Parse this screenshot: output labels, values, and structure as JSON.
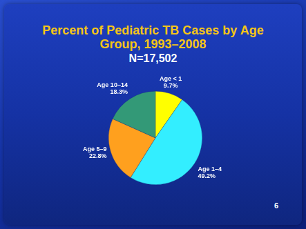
{
  "chart_data": {
    "type": "pie",
    "title": "Percent of Pediatric TB Cases by Age Group, 1993–2008",
    "subtitle": "N=17,502",
    "categories": [
      "Age < 1",
      "Age 1–4",
      "Age 5–9",
      "Age 10–14"
    ],
    "values": [
      9.7,
      49.2,
      22.8,
      18.3
    ],
    "value_labels": [
      "9.7%",
      "49.2%",
      "22.8%",
      "18.3%"
    ],
    "colors": [
      "#ffff00",
      "#33eeff",
      "#ffa01e",
      "#339977"
    ],
    "data_labels": true,
    "legend": false
  },
  "slide": {
    "number": "6"
  }
}
